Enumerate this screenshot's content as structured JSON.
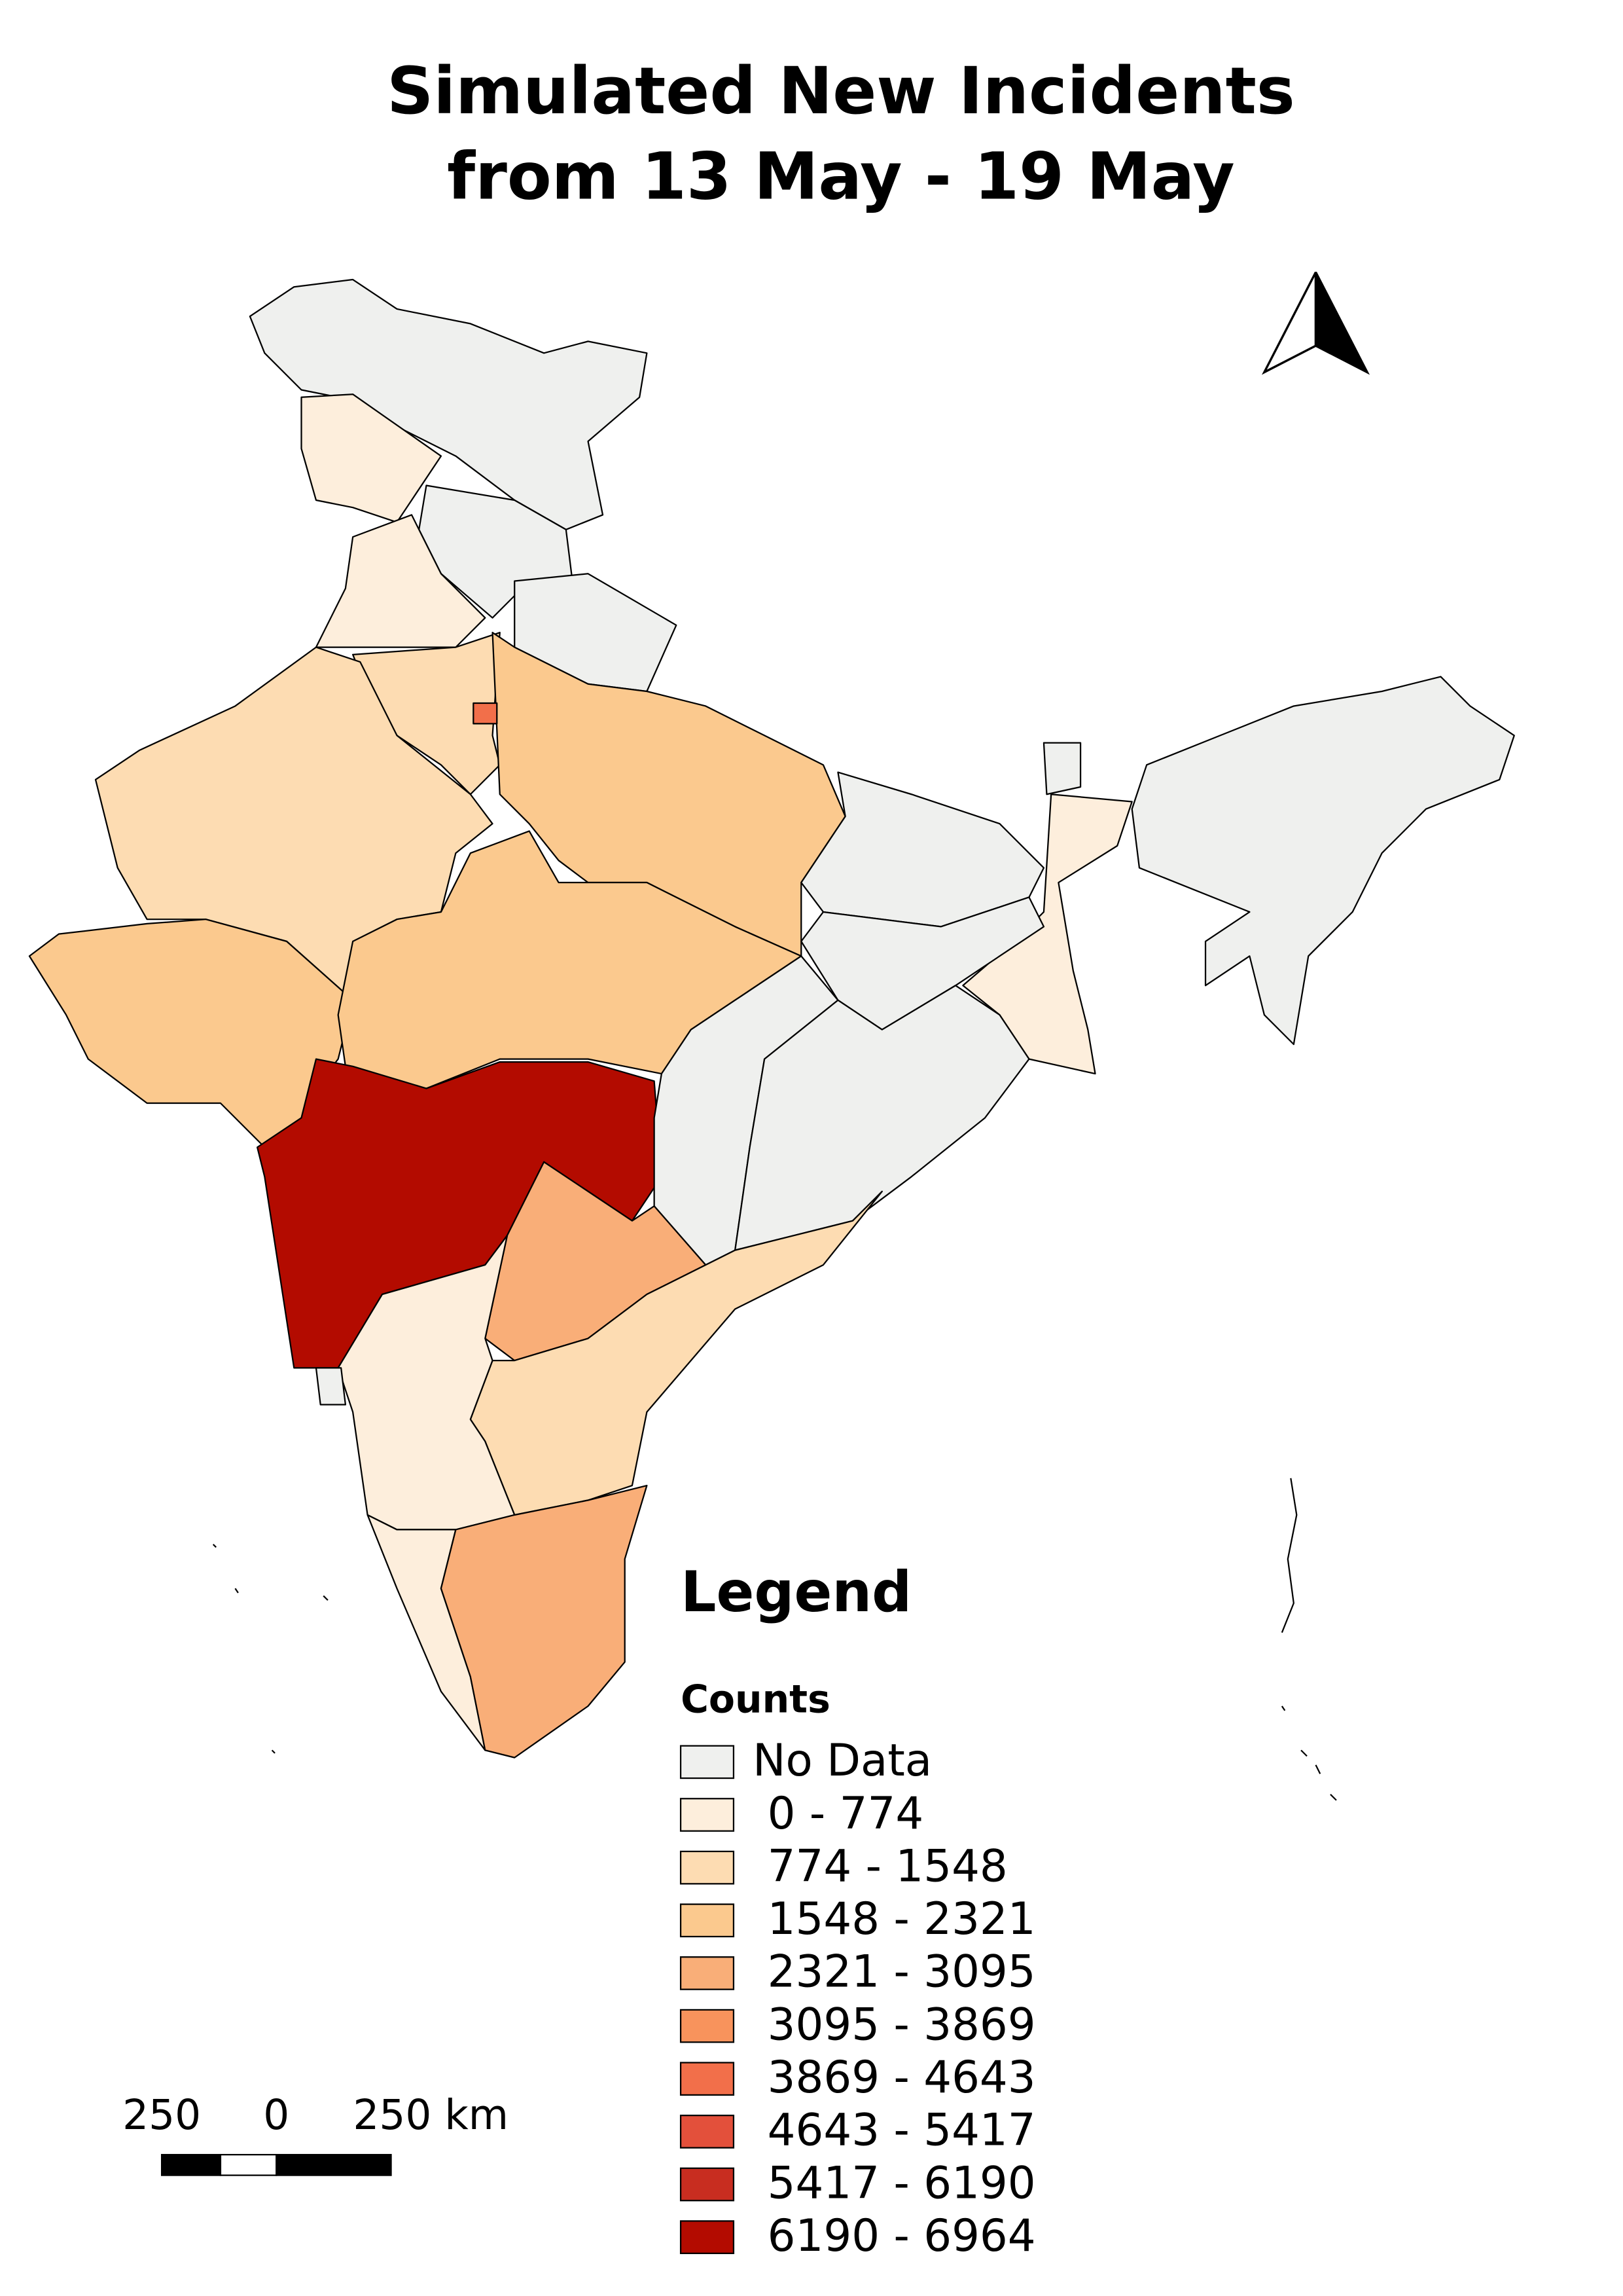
{
  "title": [
    "Simulated New Incidents",
    "from 13 May - 19 May"
  ],
  "legend": {
    "title": "Legend",
    "subtitle": "Counts",
    "items": [
      {
        "label": "No Data",
        "color": "#eff0ee"
      },
      {
        "label": "0 - 774",
        "color": "#fdeedc"
      },
      {
        "label": "774 - 1548",
        "color": "#fddcb2"
      },
      {
        "label": "1548 - 2321",
        "color": "#fbc98e"
      },
      {
        "label": "2321 - 3095",
        "color": "#f9ae78"
      },
      {
        "label": "3095 - 3869",
        "color": "#f8935c"
      },
      {
        "label": "3869 - 4643",
        "color": "#f26f4a"
      },
      {
        "label": "4643 - 5417",
        "color": "#e3503b"
      },
      {
        "label": "5417 - 6190",
        "color": "#c82d20"
      },
      {
        "label": "6190 - 6964",
        "color": "#b30b00"
      }
    ]
  },
  "scale_bar": {
    "labels": [
      "250",
      "0",
      "250 km"
    ]
  }
}
